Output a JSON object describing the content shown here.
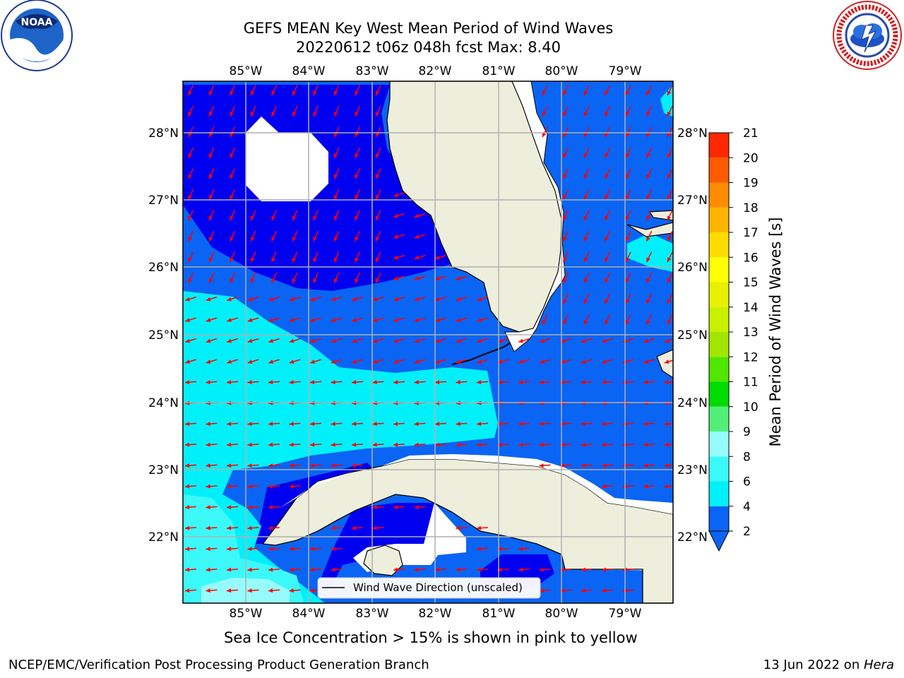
{
  "title": {
    "line1": "GEFS MEAN Key West Mean Period of Wind Waves",
    "line2": "20220612 t06z 048h fcst   Max: 8.40"
  },
  "map": {
    "lon_labels": [
      "85°W",
      "84°W",
      "83°W",
      "82°W",
      "81°W",
      "80°W",
      "79°W"
    ],
    "lat_labels": [
      "28°N",
      "27°N",
      "26°N",
      "25°N",
      "24°N",
      "23°N",
      "22°N"
    ],
    "legend_label": "Wind Wave Direction (unscaled)",
    "colors": {
      "land": "#eeeedd",
      "period_2_4": "#0a64f4",
      "period_4_6": "#00f0fa",
      "period_6_8": "#3cf9f9",
      "below_2": "#0000f0",
      "arrow": "#ff0000",
      "grid": "#b0b0b0"
    }
  },
  "colorbar": {
    "label": "Mean Period of Wind Waves [s]",
    "ticks": [
      "2",
      "4",
      "6",
      "8",
      "9",
      "10",
      "11",
      "12",
      "13",
      "14",
      "15",
      "16",
      "17",
      "18",
      "19",
      "20",
      "21"
    ],
    "colors": [
      "#0a64f4",
      "#00f0fa",
      "#3cf9f9",
      "#96fbfb",
      "#50f078",
      "#00dc00",
      "#50e600",
      "#a0e600",
      "#c8f000",
      "#e6f000",
      "#ffff00",
      "#ffdc00",
      "#ffb400",
      "#ff8c00",
      "#ff5a00",
      "#ff2800",
      "#ff0000"
    ]
  },
  "caption": "Sea Ice Concentration > 15% is shown in pink to yellow",
  "footer": {
    "left": "NCEP/EMC/Verification Post Processing Product Generation Branch",
    "right_date": "13 Jun 2022 on ",
    "right_host": "Hera"
  },
  "logos": {
    "noaa_text": "NOAA",
    "noaa_ring": "NATIONAL OCEANIC AND ATMOSPHERIC ADMINISTRATION · U.S. DEPARTMENT OF COMMERCE",
    "nws_ring": "NATIONAL WEATHER SERVICE"
  }
}
